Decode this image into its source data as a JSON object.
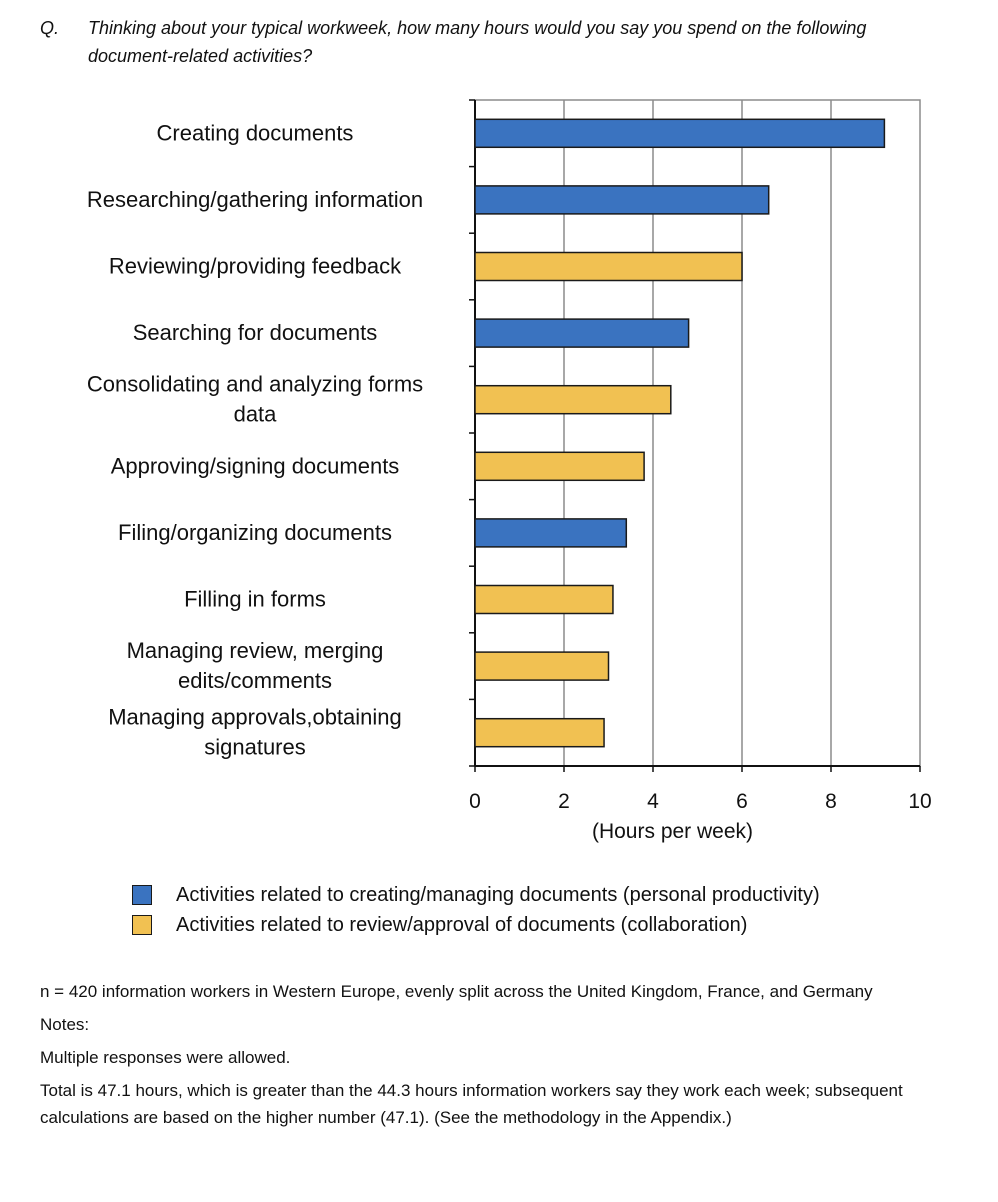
{
  "question": {
    "label": "Q.",
    "text": "Thinking about your typical workweek, how many hours would you say you spend on the following document-related activities?"
  },
  "chart_data": {
    "type": "bar",
    "orientation": "horizontal",
    "categories": [
      [
        "Creating documents"
      ],
      [
        "Researching/gathering information"
      ],
      [
        "Reviewing/providing feedback"
      ],
      [
        "Searching for documents"
      ],
      [
        "Consolidating and analyzing forms",
        "data"
      ],
      [
        "Approving/signing documents"
      ],
      [
        "Filing/organizing documents"
      ],
      [
        "Filling in forms"
      ],
      [
        "Managing review, merging",
        "edits/comments"
      ],
      [
        "Managing approvals,obtaining",
        "signatures"
      ]
    ],
    "values": [
      9.2,
      6.6,
      6.0,
      4.8,
      4.4,
      3.8,
      3.4,
      3.1,
      3.0,
      2.9
    ],
    "groups": [
      "personal",
      "personal",
      "collab",
      "personal",
      "collab",
      "collab",
      "personal",
      "collab",
      "collab",
      "collab"
    ],
    "xlim": [
      0,
      10
    ],
    "xticks": [
      "0",
      "2",
      "4",
      "6",
      "8",
      "10"
    ],
    "xlabel": "(Hours per week)",
    "grid": true,
    "colors": {
      "personal": "#3a73c0",
      "collab": "#f1c152"
    }
  },
  "legend": {
    "personal": "Activities related to creating/managing documents (personal productivity)",
    "collab": "Activities related to review/approval of documents (collaboration)"
  },
  "notes": {
    "sample": "n = 420 information workers in Western Europe, evenly split across the United Kingdom, France, and Germany",
    "heading": "Notes:",
    "multiple": "Multiple responses were allowed.",
    "total": "Total is 47.1 hours, which is greater than the 44.3 hours information workers say they work each week; subsequent calculations are based on the higher number (47.1). (See the methodology in the Appendix.)"
  }
}
